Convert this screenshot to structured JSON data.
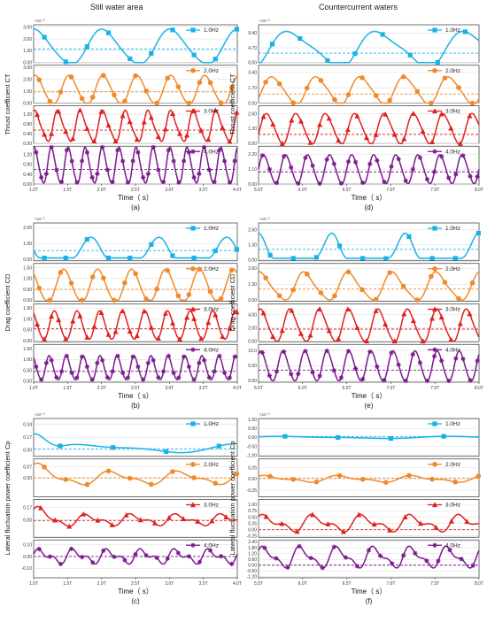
{
  "figure": {
    "col_titles": [
      "Still water area",
      "Countercurrent waters"
    ]
  },
  "chart_data": [
    {
      "id": "a",
      "caption": "(a)",
      "type": "line",
      "xlabel": "Time（ s）",
      "ylabel": "Thrust coefficient CT",
      "scale": "×10⁻³",
      "xticks": [
        "1.0T",
        "1.5T",
        "2.0T",
        "2.5T",
        "3.0T",
        "3.5T",
        "4.0T"
      ],
      "series": [
        {
          "name": "1.0Hz",
          "color": "#19b2e8",
          "marker": "square",
          "yticks": [
            "0.00",
            "1.00",
            "2.00",
            "3.00"
          ],
          "ylim": [
            0,
            3.2
          ],
          "mean": 1.15,
          "wave": {
            "base": 1.3,
            "amp": 1.45,
            "cycles": 3,
            "phase": 1.4,
            "harm2": 0.15,
            "clip": [
              0,
              3.2
            ]
          }
        },
        {
          "name": "2.0Hz",
          "color": "#f08a2c",
          "marker": "circle",
          "yticks": [
            "0.00",
            "1.00",
            "2.00",
            "3.00"
          ],
          "ylim": [
            0,
            3.2
          ],
          "mean": 0.95,
          "wave": {
            "base": 1.1,
            "amp": 1.2,
            "cycles": 6,
            "phase": 1.2,
            "harm2": 0.1,
            "clip": [
              0,
              3.2
            ]
          }
        },
        {
          "name": "3.0Hz",
          "color": "#e02020",
          "marker": "triangle",
          "yticks": [
            "0.00",
            "0.40",
            "0.80",
            "1.20"
          ],
          "ylim": [
            0,
            1.55
          ],
          "mean": 0.55,
          "wave": {
            "base": 0.7,
            "amp": 0.6,
            "cycles": 9,
            "phase": 1.0,
            "harm2": 0.12,
            "clip": [
              0,
              1.55
            ]
          }
        },
        {
          "name": "4.0Hz",
          "color": "#7a1a8c",
          "marker": "star",
          "yticks": [
            "0.00",
            "0.40",
            "0.80",
            "1.20"
          ],
          "ylim": [
            0,
            1.55
          ],
          "mean": 0.6,
          "wave": {
            "base": 0.75,
            "amp": 0.72,
            "cycles": 12,
            "phase": 1.2,
            "harm2": 0.08,
            "clip": [
              0,
              1.55
            ]
          }
        }
      ]
    },
    {
      "id": "d",
      "caption": "(d)",
      "type": "line",
      "xlabel": "Time（ s）",
      "ylabel": "Thrust coefficient CT",
      "scale": "×10⁻³",
      "xticks": [
        "5.5T",
        "6.0T",
        "6.5T",
        "7.0T",
        "7.5T",
        "8.0T"
      ],
      "series": [
        {
          "name": "1.0Hz",
          "color": "#19b2e8",
          "marker": "square",
          "yticks": [
            "0.00",
            "4.70",
            "9.40"
          ],
          "ylim": [
            0,
            12
          ],
          "mean": 3.0,
          "wave": {
            "base": 4.2,
            "amp": 5.5,
            "cycles": 2.5,
            "phase": -0.8,
            "harm2": 1.2,
            "clip": [
              0,
              12
            ]
          }
        },
        {
          "name": "2.0Hz",
          "color": "#f08a2c",
          "marker": "circle",
          "yticks": [
            "0.00",
            "1.70",
            "3.40"
          ],
          "ylim": [
            0,
            4.2
          ],
          "mean": 1.0,
          "wave": {
            "base": 1.4,
            "amp": 1.5,
            "cycles": 5,
            "phase": -0.5,
            "harm2": 0.2,
            "clip": [
              0,
              4.2
            ]
          }
        },
        {
          "name": "3.0Hz",
          "color": "#e02020",
          "marker": "triangle",
          "yticks": [
            "0.00",
            "1.30",
            "2.60"
          ],
          "ylim": [
            0,
            3.3
          ],
          "mean": 0.8,
          "wave": {
            "base": 1.3,
            "amp": 1.3,
            "cycles": 7.5,
            "phase": -0.3,
            "harm2": 0.15,
            "clip": [
              0,
              3.3
            ]
          }
        },
        {
          "name": "4.0Hz",
          "color": "#7a1a8c",
          "marker": "star",
          "yticks": [
            "0.00",
            "1.10",
            "2.20"
          ],
          "ylim": [
            0,
            2.8
          ],
          "mean": 0.9,
          "wave": {
            "base": 1.1,
            "amp": 1.05,
            "cycles": 10,
            "phase": 0.0,
            "harm2": 0.1,
            "clip": [
              0,
              2.8
            ]
          }
        }
      ]
    },
    {
      "id": "b",
      "caption": "(b)",
      "type": "line",
      "xlabel": "Time（ s）",
      "ylabel": "Drag coefficient CD",
      "scale": "×10⁻³",
      "xticks": [
        "1.0T",
        "1.5T",
        "2.0T",
        "2.5T",
        "3.0T",
        "3.5T",
        "4.0T"
      ],
      "series": [
        {
          "name": "1.0Hz",
          "color": "#19b2e8",
          "marker": "square",
          "yticks": [
            "0.00",
            "1.00",
            "2.00"
          ],
          "ylim": [
            -0.1,
            2.3
          ],
          "mean": 0.55,
          "wave": {
            "base": 0.55,
            "amp": 1.0,
            "cycles": 3,
            "phase": 2.6,
            "harm2": 0.3,
            "clip": [
              0,
              2.3
            ],
            "spiky": true
          }
        },
        {
          "name": "2.0Hz",
          "color": "#f08a2c",
          "marker": "circle",
          "yticks": [
            "0.00",
            "0.50",
            "1.00",
            "1.50"
          ],
          "ylim": [
            -0.05,
            1.7
          ],
          "mean": 0.5,
          "wave": {
            "base": 0.65,
            "amp": 0.75,
            "cycles": 6,
            "phase": 2.2,
            "harm2": 0.05,
            "clip": [
              0,
              1.7
            ]
          }
        },
        {
          "name": "3.0Hz",
          "color": "#e02020",
          "marker": "triangle",
          "yticks": [
            "0.00",
            "0.50",
            "1.00",
            "1.50"
          ],
          "ylim": [
            -0.05,
            1.7
          ],
          "mean": 0.55,
          "wave": {
            "base": 0.7,
            "amp": 0.65,
            "cycles": 9,
            "phase": 2.0,
            "harm2": 0.05,
            "clip": [
              0,
              1.7
            ]
          }
        },
        {
          "name": "4.0Hz",
          "color": "#7a1a8c",
          "marker": "star",
          "yticks": [
            "0.00",
            "0.50",
            "1.00",
            "1.50"
          ],
          "ylim": [
            -0.05,
            1.7
          ],
          "mean": 0.45,
          "wave": {
            "base": 0.6,
            "amp": 0.55,
            "cycles": 12,
            "phase": 2.0,
            "harm2": 0.05,
            "clip": [
              0,
              1.7
            ]
          }
        }
      ]
    },
    {
      "id": "e",
      "caption": "(e)",
      "type": "line",
      "xlabel": "Time（ s）",
      "ylabel": "Drag coefficient CD",
      "scale": "×10⁻³",
      "xticks": [
        "5.5T",
        "6.0T",
        "6.5T",
        "7.0T",
        "7.5T",
        "8.0T"
      ],
      "series": [
        {
          "name": "1.0Hz",
          "color": "#19b2e8",
          "marker": "square",
          "yticks": [
            "0.00",
            "1.30",
            "2.60"
          ],
          "ylim": [
            -0.1,
            3.2
          ],
          "mean": 0.9,
          "wave": {
            "base": 0.8,
            "amp": 1.2,
            "cycles": 3,
            "phase": 1.8,
            "harm2": 0.6,
            "clip": [
              0,
              3.2
            ],
            "spiky": true
          }
        },
        {
          "name": "2.0Hz",
          "color": "#f08a2c",
          "marker": "circle",
          "yticks": [
            "0.00",
            "1.30",
            "2.60"
          ],
          "ylim": [
            -0.1,
            3.0
          ],
          "mean": 0.9,
          "wave": {
            "base": 1.1,
            "amp": 1.1,
            "cycles": 5,
            "phase": 1.2,
            "harm2": 0.2,
            "clip": [
              0,
              3.0
            ]
          }
        },
        {
          "name": "3.0Hz",
          "color": "#e02020",
          "marker": "triangle",
          "yticks": [
            "0.00",
            "2.00",
            "4.00"
          ],
          "ylim": [
            -0.1,
            5.6
          ],
          "mean": 1.8,
          "wave": {
            "base": 2.3,
            "amp": 2.4,
            "cycles": 7.5,
            "phase": 1.0,
            "harm2": 0.3,
            "clip": [
              0,
              5.6
            ]
          }
        },
        {
          "name": "4.0Hz",
          "color": "#7a1a8c",
          "marker": "star",
          "yticks": [
            "0.00",
            "5.00",
            "10.0"
          ],
          "ylim": [
            -0.5,
            12
          ],
          "mean": 3.5,
          "wave": {
            "base": 4.8,
            "amp": 4.9,
            "cycles": 10,
            "phase": 0.8,
            "harm2": 0.4,
            "clip": [
              0,
              12
            ]
          }
        }
      ]
    },
    {
      "id": "c",
      "caption": "(c)",
      "type": "line",
      "xlabel": "Time（ s）",
      "ylabel": "Lateral fluctuation power coefficient Cp",
      "scale": "×10⁻³",
      "xticks": [
        "1.0T",
        "1.5T",
        "2.0T",
        "2.5T",
        "3.0T",
        "3.5T",
        "4.0T"
      ],
      "series": [
        {
          "name": "1.0Hz",
          "color": "#19b2e8",
          "marker": "square",
          "yticks": [
            "0.00",
            "0.17",
            "0.34"
          ],
          "ylim": [
            -0.08,
            0.42
          ],
          "mean": 0.02,
          "wave": {
            "base": 0.03,
            "amp": 0.05,
            "cycles": 1.2,
            "phase": -0.3,
            "harm2": 0.02,
            "clip": [
              -0.08,
              0.42
            ],
            "decayStart": 0.26
          }
        },
        {
          "name": "2.0Hz",
          "color": "#f08a2c",
          "marker": "circle",
          "yticks": [
            "0.00",
            "0.07"
          ],
          "ylim": [
            -0.12,
            0.12
          ],
          "mean": 0.0,
          "wave": {
            "base": 0.0,
            "amp": 0.035,
            "cycles": 3,
            "phase": 0.5,
            "harm2": 0.015,
            "clip": [
              -0.12,
              0.12
            ],
            "decayStart": 0.07
          }
        },
        {
          "name": "3.0Hz",
          "color": "#e02020",
          "marker": "triangle",
          "yticks": [
            "0.00",
            "0.17"
          ],
          "ylim": [
            -0.24,
            0.28
          ],
          "mean": -0.01,
          "wave": {
            "base": 0.0,
            "amp": 0.06,
            "cycles": 4.5,
            "phase": 0.3,
            "harm2": 0.035,
            "clip": [
              -0.24,
              0.28
            ],
            "decayStart": 0.14
          }
        },
        {
          "name": "4.0Hz",
          "color": "#7a1a8c",
          "marker": "star",
          "yticks": [
            "-0.10",
            "0.00",
            "0.10"
          ],
          "ylim": [
            -0.18,
            0.14
          ],
          "mean": 0.0,
          "wave": {
            "base": 0.0,
            "amp": 0.045,
            "cycles": 6,
            "phase": 0.2,
            "harm2": 0.03,
            "clip": [
              -0.18,
              0.14
            ]
          }
        }
      ]
    },
    {
      "id": "f",
      "caption": "(f)",
      "type": "line",
      "xlabel": "Time（ s）",
      "ylabel": "Lateral fluctuation power coefficient Cp",
      "scale": "×10⁻³",
      "xticks": [
        "5.5T",
        "6.0T",
        "6.5T",
        "7.0T",
        "7.5T",
        "8.0T"
      ],
      "series": [
        {
          "name": "1.0Hz",
          "color": "#19b2e8",
          "marker": "square",
          "yticks": [
            "-1.00",
            "-0.50",
            "0.00",
            "0.50",
            "1.00"
          ],
          "ylim": [
            -1.05,
            1.05
          ],
          "mean": 0.05,
          "wave": {
            "base": 0.0,
            "amp": 0.05,
            "cycles": 1.3,
            "phase": 0.4,
            "harm2": 0.02,
            "clip": [
              -1.05,
              1.05
            ]
          }
        },
        {
          "name": "2.0Hz",
          "color": "#f08a2c",
          "marker": "circle",
          "yticks": [
            "-0.25",
            "0.00",
            "0.25"
          ],
          "ylim": [
            -0.4,
            0.45
          ],
          "mean": 0.02,
          "wave": {
            "base": 0.0,
            "amp": 0.06,
            "cycles": 3,
            "phase": 0.7,
            "harm2": 0.03,
            "clip": [
              -0.4,
              0.45
            ]
          }
        },
        {
          "name": "3.0Hz",
          "color": "#e02020",
          "marker": "triangle",
          "yticks": [
            "-0.25",
            "0.00",
            "0.25",
            "0.50",
            "0.75",
            "1.00"
          ],
          "ylim": [
            -0.3,
            1.2
          ],
          "mean": 0.0,
          "wave": {
            "base": 0.25,
            "amp": 0.25,
            "cycles": 4.5,
            "phase": 0.6,
            "harm2": 0.15,
            "clip": [
              -0.3,
              1.2
            ]
          }
        },
        {
          "name": "4.0Hz",
          "color": "#7a1a8c",
          "marker": "star",
          "yticks": [
            "-1.20",
            "-0.60",
            "0.00",
            "0.60",
            "1.20",
            "1.80",
            "2.40"
          ],
          "ylim": [
            -1.3,
            2.6
          ],
          "mean": 0.0,
          "wave": {
            "base": 0.8,
            "amp": 0.9,
            "cycles": 6,
            "phase": 0.5,
            "harm2": 0.4,
            "clip": [
              -1.3,
              2.6
            ]
          }
        }
      ]
    }
  ]
}
